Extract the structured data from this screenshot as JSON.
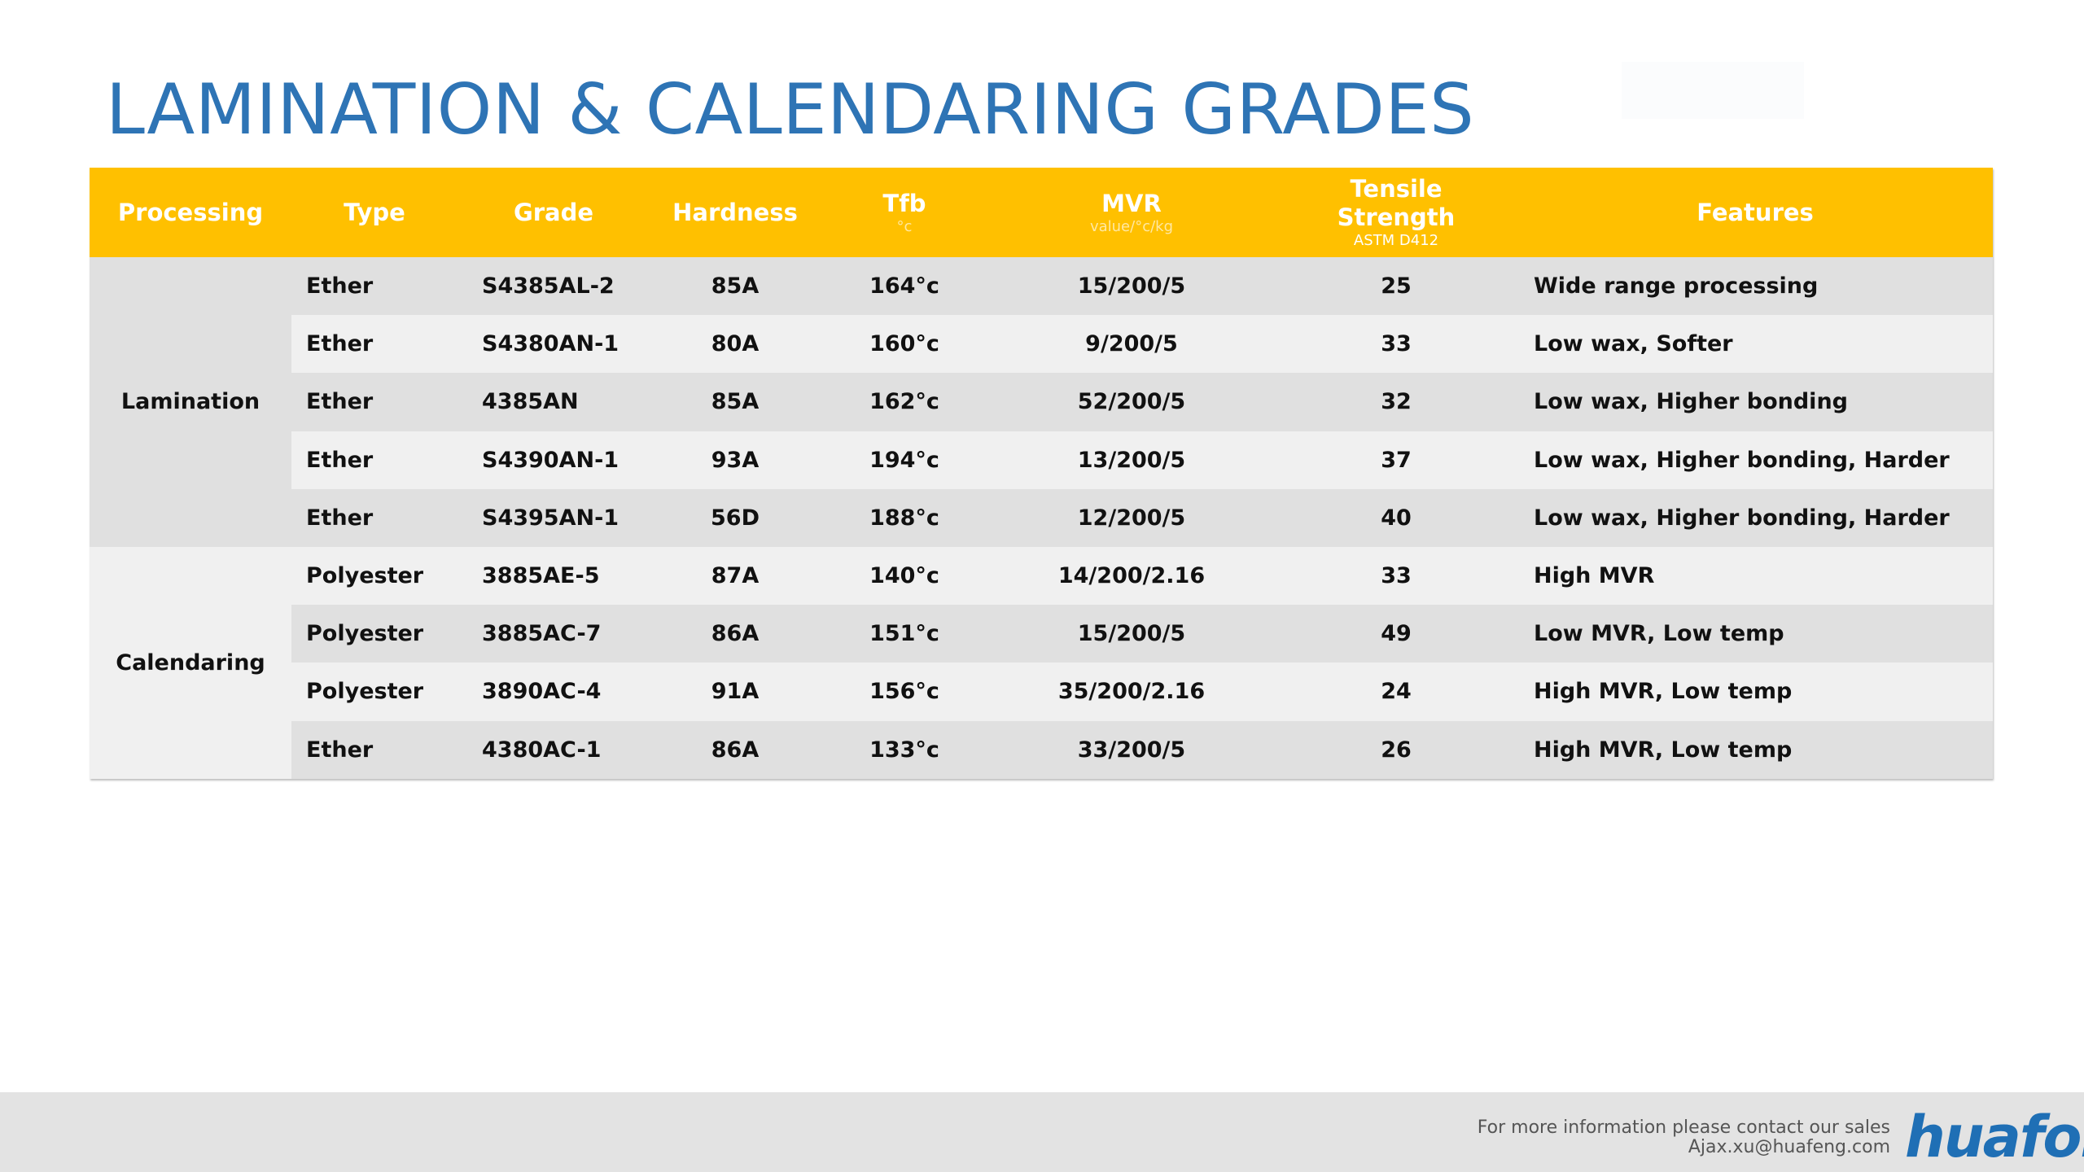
{
  "title": "LAMINATION & CALENDARING GRADES",
  "table": {
    "headers": {
      "processing": "Processing",
      "type": "Type",
      "grade": "Grade",
      "hardness": "Hardness",
      "tfb": "Tfb",
      "tfb_unit": "°c",
      "mvr": "MVR",
      "mvr_unit": "value/°c/kg",
      "tensile_line1": "Tensile",
      "tensile_line2": "Strength",
      "tensile_std": "ASTM D412",
      "features": "Features"
    },
    "groups": {
      "lamination": "Lamination",
      "calendaring": "Calendaring"
    },
    "rows": [
      {
        "type": "Ether",
        "grade": "S4385AL-2",
        "hardness": "85A",
        "tfb": "164°c",
        "mvr": "15/200/5",
        "tensile": "25",
        "features": "Wide range processing"
      },
      {
        "type": "Ether",
        "grade": "S4380AN-1",
        "hardness": "80A",
        "tfb": "160°c",
        "mvr": "9/200/5",
        "tensile": "33",
        "features": "Low wax, Softer"
      },
      {
        "type": "Ether",
        "grade": "4385AN",
        "hardness": "85A",
        "tfb": "162°c",
        "mvr": "52/200/5",
        "tensile": "32",
        "features": "Low wax, Higher bonding"
      },
      {
        "type": "Ether",
        "grade": "S4390AN-1",
        "hardness": "93A",
        "tfb": "194°c",
        "mvr": "13/200/5",
        "tensile": "37",
        "features": "Low wax, Higher bonding, Harder"
      },
      {
        "type": "Ether",
        "grade": "S4395AN-1",
        "hardness": "56D",
        "tfb": "188°c",
        "mvr": "12/200/5",
        "tensile": "40",
        "features": "Low wax, Higher bonding, Harder"
      },
      {
        "type": "Polyester",
        "grade": "3885AE-5",
        "hardness": "87A",
        "tfb": "140°c",
        "mvr": "14/200/2.16",
        "tensile": "33",
        "features": "High MVR"
      },
      {
        "type": "Polyester",
        "grade": "3885AC-7",
        "hardness": "86A",
        "tfb": "151°c",
        "mvr": "15/200/5",
        "tensile": "49",
        "features": "Low MVR, Low temp"
      },
      {
        "type": "Polyester",
        "grade": "3890AC-4",
        "hardness": "91A",
        "tfb": "156°c",
        "mvr": "35/200/2.16",
        "tensile": "24",
        "features": "High MVR, Low temp"
      },
      {
        "type": "Ether",
        "grade": "4380AC-1",
        "hardness": "86A",
        "tfb": "133°c",
        "mvr": "33/200/5",
        "tensile": "26",
        "features": "High MVR, Low temp"
      }
    ]
  },
  "footer": {
    "contact_line1": "For more information please contact our sales",
    "contact_line2": "Ajax.xu@huafeng.com",
    "logo_text": "huafon"
  },
  "colors": {
    "title": "#2e74b5",
    "header": "#ffc000",
    "row_dark": "#e0e0e0",
    "row_light": "#f0f0f0",
    "footer": "#e3e3e3",
    "logo": "#1f6fb5"
  }
}
